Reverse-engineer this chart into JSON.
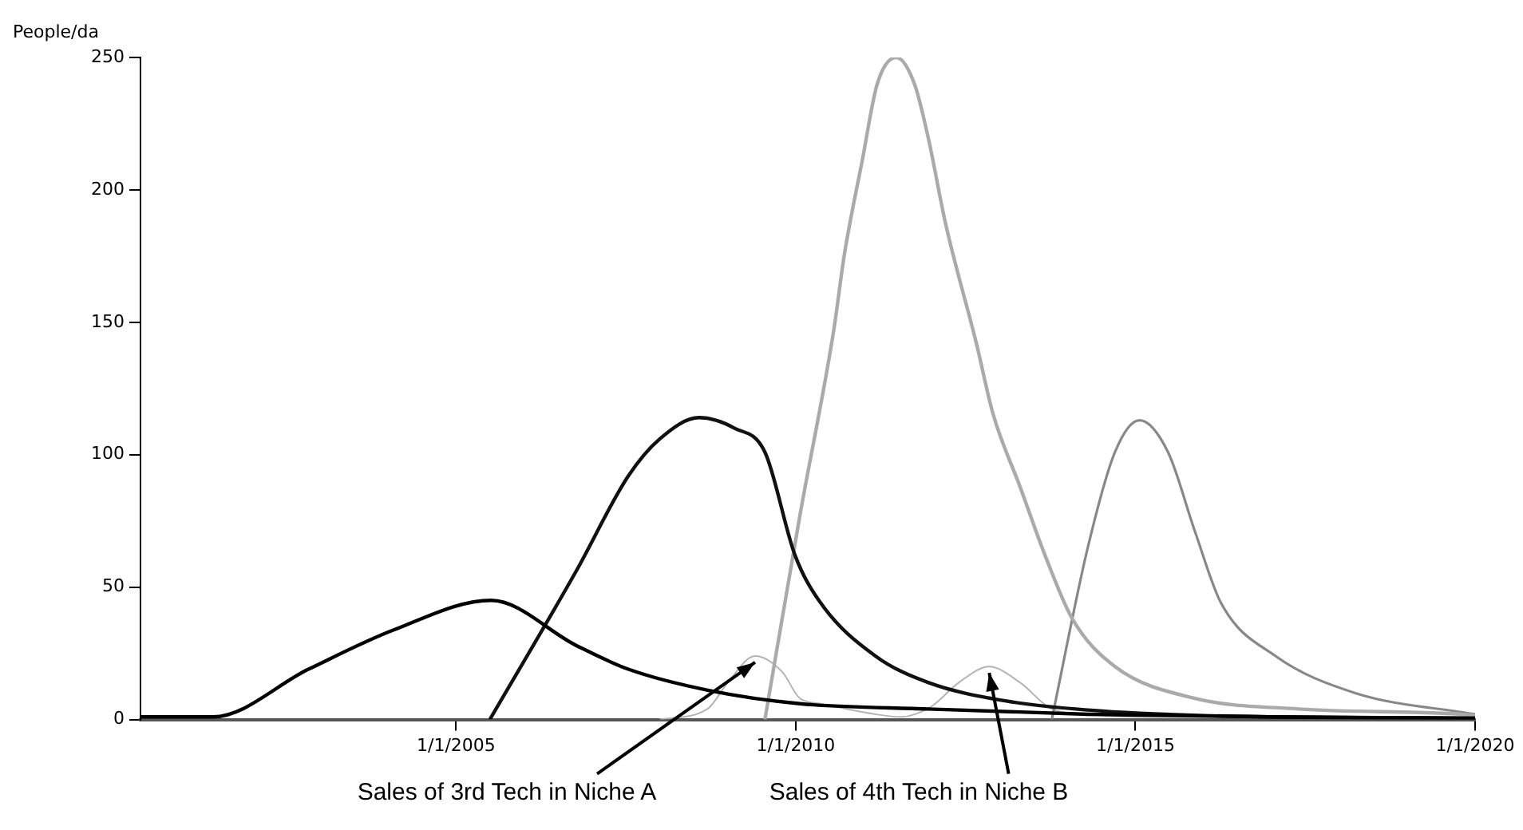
{
  "chart_data": {
    "type": "line",
    "ylabel": "People/da",
    "xlim": [
      "2000-05-10",
      "2020-01-01"
    ],
    "xticks": [
      {
        "value": "2005-01-01",
        "label": "1/1/2005"
      },
      {
        "value": "2010-01-01",
        "label": "1/1/2010"
      },
      {
        "value": "2015-01-01",
        "label": "1/1/2015"
      },
      {
        "value": "2020-01-01",
        "label": "1/1/2020"
      }
    ],
    "ylim": [
      0,
      250
    ],
    "yticks": [
      0,
      50,
      100,
      150,
      200,
      250
    ],
    "grid": false,
    "legend": false,
    "series": [
      {
        "color": "#000000",
        "x": [
          "2000-05-10",
          "2001-06-03",
          "2002-10-30",
          "2004-02-06",
          "2005-07-08",
          "2006-10-08",
          "2007-07-16",
          "2008-09-20",
          "2010-01-23",
          "2011-12-13",
          "2014-04-20",
          "2017-01-01",
          "2020-01-01"
        ],
        "values": [
          1,
          1,
          19,
          34,
          45,
          28,
          19,
          11,
          6,
          4,
          2,
          1,
          0.5
        ]
      },
      {
        "color": "#111111",
        "x": [
          "2005-07-01",
          "2006-10-08",
          "2007-07-16",
          "2008-01-01",
          "2008-07-31",
          "2009-02-06",
          "2009-07-19",
          "2009-12-28",
          "2010-05-15",
          "2011-03-05",
          "2011-12-13",
          "2013-02-06",
          "2014-04-20",
          "2016-01-01",
          "2020-01-01"
        ],
        "values": [
          0,
          56,
          92,
          106,
          114,
          110,
          101,
          62,
          44,
          24,
          14,
          7,
          3.6,
          1.5,
          0.5
        ]
      },
      {
        "color": "#aaaaaa",
        "x": [
          "2009-07-19",
          "2010-01-23",
          "2010-07-24",
          "2010-09-20",
          "2010-12-24",
          "2011-03-15",
          "2011-06-25",
          "2011-10-01",
          "2011-12-13",
          "2012-03-17",
          "2012-08-29",
          "2012-11-28",
          "2013-04-20",
          "2013-09-02",
          "2014-01-27",
          "2014-09-13",
          "2015-11-17",
          "2017-05-27",
          "2019-10-20",
          "2020-01-01"
        ],
        "values": [
          0,
          77,
          147,
          176,
          211,
          240,
          250,
          240,
          220,
          187,
          142,
          115,
          88,
          62,
          38,
          20,
          8,
          4,
          2,
          1.5
        ]
      },
      {
        "color": "#888888",
        "x": [
          "2013-10-08",
          "2014-04-20",
          "2014-09-13",
          "2015-01-23",
          "2015-06-25",
          "2015-11-17",
          "2016-04-05",
          "2017-01-23",
          "2018-03-28",
          "2020-01-01"
        ],
        "values": [
          0,
          65,
          101,
          113,
          101,
          71,
          44,
          24,
          10,
          2
        ]
      },
      {
        "color": "#b4b4b4",
        "x": [
          "2008-01-01",
          "2008-09-13",
          "2009-01-01",
          "2009-05-27",
          "2009-10-20",
          "2010-01-23",
          "2010-05-15",
          "2011-03-05",
          "2011-07-19",
          "2012-01-01",
          "2012-05-27",
          "2012-11-06",
          "2013-04-20",
          "2013-10-08",
          "2014-04-20",
          "2015-01-01",
          "2020-01-01"
        ],
        "values": [
          0,
          4,
          14,
          24,
          18,
          8,
          6,
          2,
          1,
          5,
          14,
          20,
          14,
          4,
          2,
          1,
          0.5
        ]
      }
    ],
    "annotations": [
      {
        "text": "Sales of 3rd Tech in Niche A",
        "x": "2009-05-27",
        "y": 24
      },
      {
        "text": "Sales of 4th Tech in Niche B",
        "x": "2012-11-06",
        "y": 20
      }
    ]
  }
}
